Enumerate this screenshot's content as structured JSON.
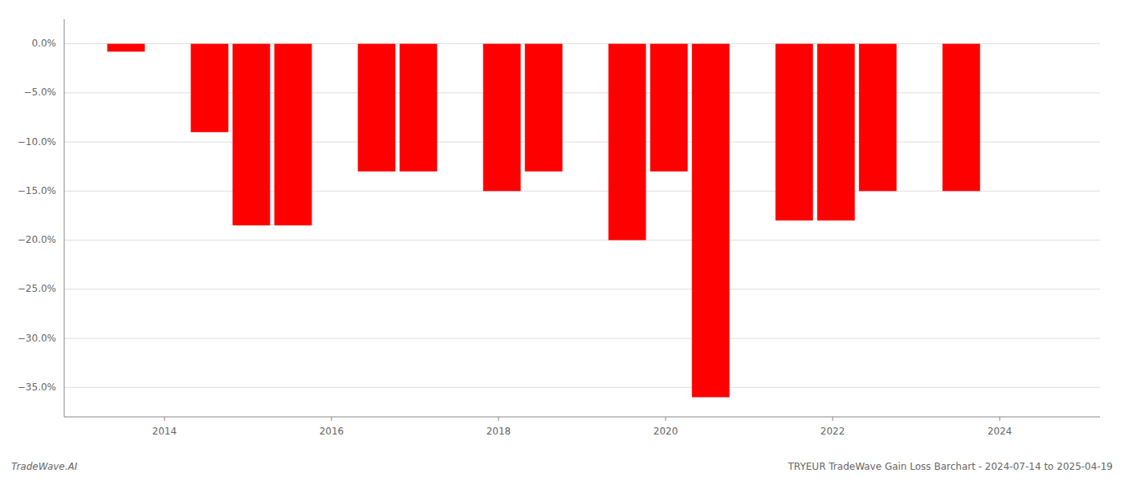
{
  "chart_data": {
    "type": "bar",
    "x": [
      2013.54,
      2014.54,
      2015.04,
      2015.54,
      2016.54,
      2017.04,
      2018.04,
      2018.54,
      2019.54,
      2020.04,
      2020.54,
      2021.54,
      2022.04,
      2022.54,
      2023.54
    ],
    "values": [
      -0.8,
      -9.0,
      -18.5,
      -18.5,
      -13.0,
      -13.0,
      -15.0,
      -13.0,
      -20.0,
      -13.0,
      -36.0,
      -18.0,
      -18.0,
      -15.0,
      -15.0
    ],
    "color": "#ff0000",
    "xlim": [
      2012.8,
      2025.2
    ],
    "xticks": [
      2014,
      2016,
      2018,
      2020,
      2022,
      2024
    ],
    "ylim": [
      -38,
      2.5
    ],
    "yticks": [
      {
        "value": 0,
        "label": "0.0%"
      },
      {
        "value": -5,
        "label": "−5.0%"
      },
      {
        "value": -10,
        "label": "−10.0%"
      },
      {
        "value": -15,
        "label": "−15.0%"
      },
      {
        "value": -20,
        "label": "−20.0%"
      },
      {
        "value": -25,
        "label": "−25.0%"
      },
      {
        "value": -30,
        "label": "−30.0%"
      },
      {
        "value": -35,
        "label": "−35.0%"
      }
    ],
    "grid": true,
    "annotations": [
      "TradeWave.AI",
      "TRYEUR TradeWave Gain Loss Barchart - 2024-07-14 to 2025-04-19"
    ]
  }
}
